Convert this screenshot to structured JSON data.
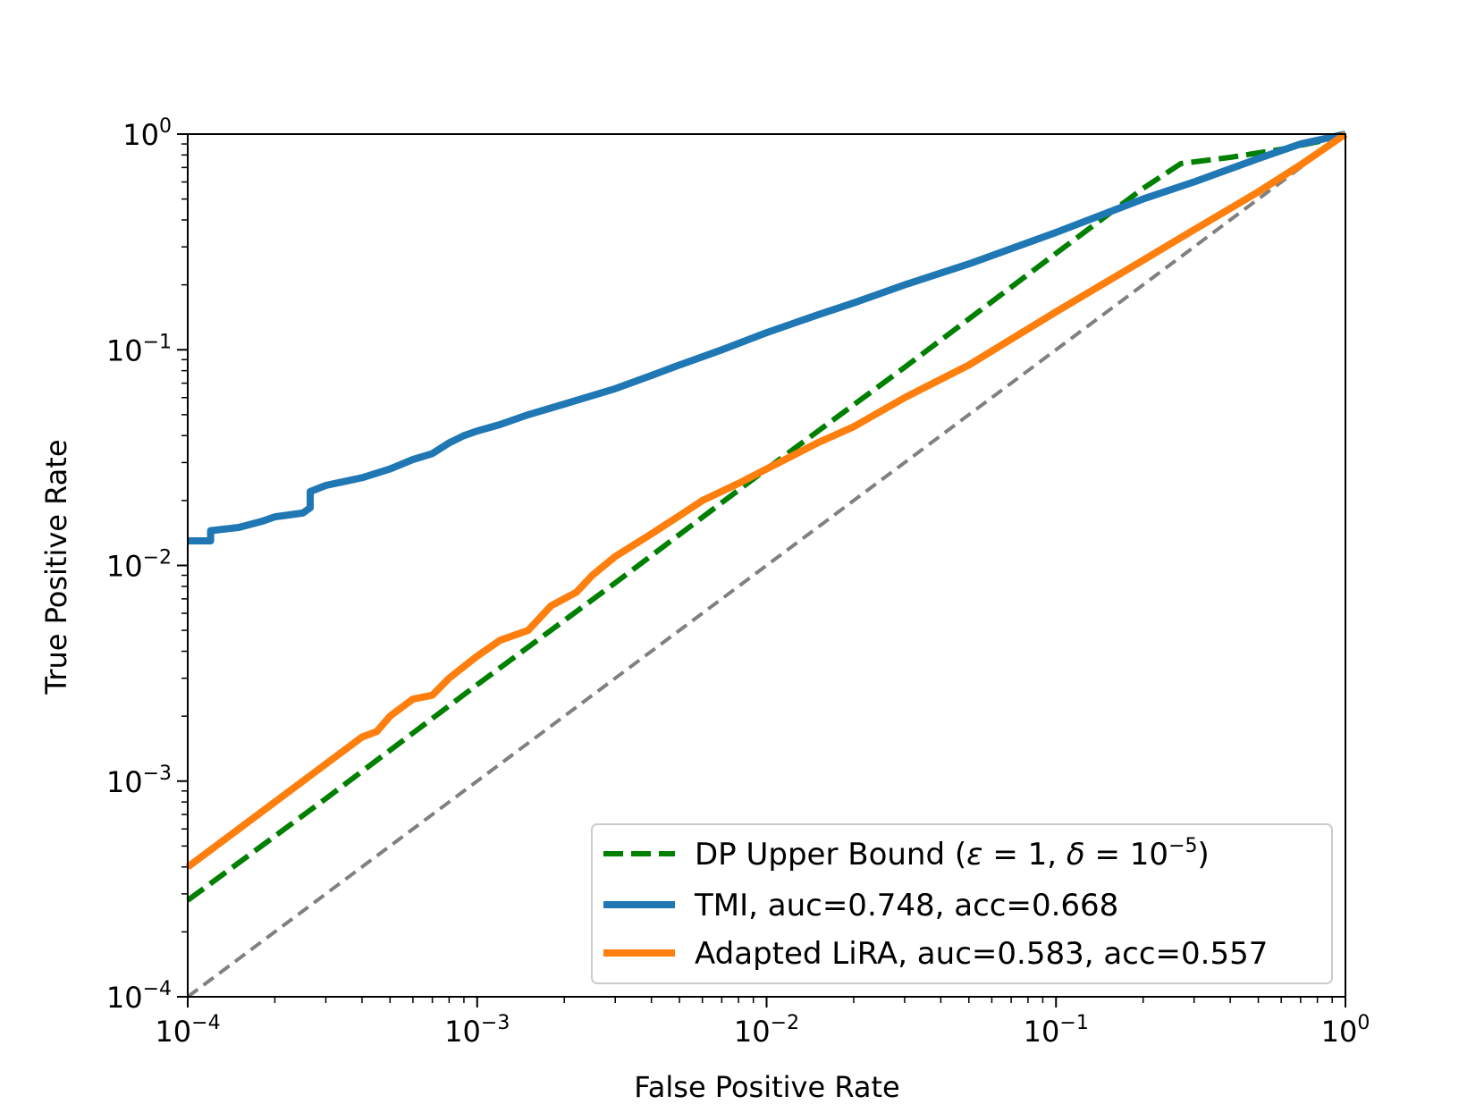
{
  "chart_data": {
    "type": "line",
    "xscale": "log",
    "yscale": "log",
    "xlabel": "False Positive Rate",
    "ylabel": "True Positive Rate",
    "xlim": [
      0.0001,
      1
    ],
    "ylim": [
      0.0001,
      1
    ],
    "xticks": [
      {
        "value": 0.0001,
        "base": "10",
        "exp": "−4"
      },
      {
        "value": 0.001,
        "base": "10",
        "exp": "−3"
      },
      {
        "value": 0.01,
        "base": "10",
        "exp": "−2"
      },
      {
        "value": 0.1,
        "base": "10",
        "exp": "−1"
      },
      {
        "value": 1,
        "base": "10",
        "exp": "0"
      }
    ],
    "yticks": [
      {
        "value": 0.0001,
        "base": "10",
        "exp": "−4"
      },
      {
        "value": 0.001,
        "base": "10",
        "exp": "−3"
      },
      {
        "value": 0.01,
        "base": "10",
        "exp": "−2"
      },
      {
        "value": 0.1,
        "base": "10",
        "exp": "−1"
      },
      {
        "value": 1,
        "base": "10",
        "exp": "0"
      }
    ],
    "legend_position": "lower right",
    "series": [
      {
        "key": "dp",
        "legend": {
          "pre": "DP Upper Bound (",
          "eps": "ε",
          "eq1": " = 1, ",
          "delta": "δ",
          "eq2": " = 10",
          "exp": "−5",
          "post": ")"
        },
        "color": "#008000",
        "dash": "dashed",
        "x": [
          0.0001,
          0.0003,
          0.001,
          0.003,
          0.01,
          0.03,
          0.1,
          0.2,
          0.27,
          0.4,
          0.6,
          0.8,
          1.0
        ],
        "y": [
          0.00028,
          0.00083,
          0.0028,
          0.0083,
          0.028,
          0.083,
          0.28,
          0.56,
          0.73,
          0.78,
          0.85,
          0.92,
          1.0
        ]
      },
      {
        "key": "tmi",
        "legend": "TMI, auc=0.748, acc=0.668",
        "color": "#1f77b4",
        "dash": "solid",
        "x": [
          0.0001,
          0.00012,
          0.00012,
          0.00015,
          0.00018,
          0.0002,
          0.00025,
          0.000265,
          0.000265,
          0.0003,
          0.0004,
          0.0005,
          0.0006,
          0.0007,
          0.0008,
          0.0009,
          0.001,
          0.0012,
          0.0015,
          0.002,
          0.003,
          0.004,
          0.005,
          0.007,
          0.01,
          0.015,
          0.02,
          0.03,
          0.05,
          0.1,
          0.2,
          0.3,
          0.5,
          0.7,
          1.0
        ],
        "y": [
          0.013,
          0.013,
          0.0145,
          0.015,
          0.016,
          0.0168,
          0.0175,
          0.0185,
          0.022,
          0.0235,
          0.0255,
          0.028,
          0.031,
          0.033,
          0.037,
          0.04,
          0.042,
          0.045,
          0.05,
          0.056,
          0.066,
          0.076,
          0.085,
          0.1,
          0.12,
          0.145,
          0.165,
          0.2,
          0.25,
          0.35,
          0.5,
          0.6,
          0.77,
          0.9,
          1.0
        ]
      },
      {
        "key": "lira",
        "legend": "Adapted LiRA,  auc=0.583, acc=0.557",
        "color": "#ff7f0e",
        "dash": "solid",
        "x": [
          0.0001,
          0.0004,
          0.00045,
          0.0005,
          0.00055,
          0.0006,
          0.0007,
          0.0008,
          0.001,
          0.0012,
          0.0015,
          0.0018,
          0.0022,
          0.0025,
          0.003,
          0.004,
          0.005,
          0.006,
          0.008,
          0.01,
          0.015,
          0.02,
          0.03,
          0.05,
          0.1,
          0.2,
          0.3,
          0.5,
          0.7,
          1.0
        ],
        "y": [
          0.0004,
          0.0016,
          0.0017,
          0.002,
          0.0022,
          0.0024,
          0.0025,
          0.003,
          0.0038,
          0.0045,
          0.005,
          0.0065,
          0.0075,
          0.009,
          0.011,
          0.014,
          0.017,
          0.02,
          0.024,
          0.028,
          0.037,
          0.044,
          0.06,
          0.085,
          0.15,
          0.26,
          0.36,
          0.54,
          0.72,
          1.0
        ]
      },
      {
        "key": "chance",
        "legend": null,
        "color": "#808080",
        "dash": "dashed",
        "x": [
          0.0001,
          1.0
        ],
        "y": [
          0.0001,
          1.0
        ]
      }
    ]
  }
}
